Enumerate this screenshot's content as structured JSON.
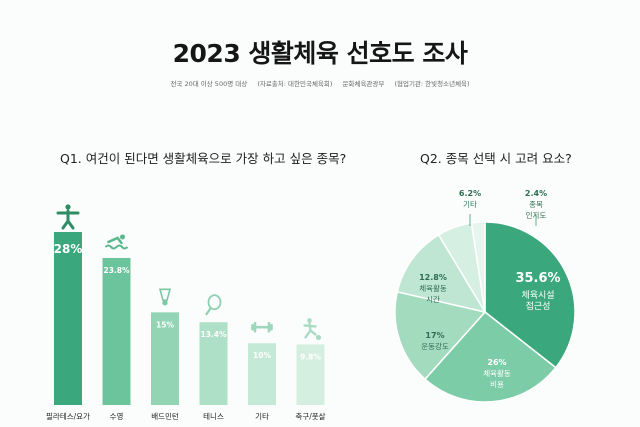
{
  "page": {
    "title": "2023 생활체육 선호도 조사",
    "subtitle_parts": [
      "전국 20대 이상 500명 대상",
      "(자료출처: 대한민국체육회)",
      "문화체육관광부",
      "(협업기관: 한빛청소년체육)"
    ]
  },
  "chart_data": [
    {
      "type": "bar",
      "title": "Q1. 여건이 된다면 생활체육으로 가장 하고 싶은 종목?",
      "categories": [
        "필라테스/요가",
        "수영",
        "배드민턴",
        "테니스",
        "기타",
        "축구/풋살"
      ],
      "values": [
        28,
        23.8,
        15,
        13.4,
        10,
        9.8
      ],
      "value_labels": [
        "28%",
        "23.8%",
        "15%",
        "13.4%",
        "10%",
        "9.8%"
      ],
      "icons": [
        "pilates-icon",
        "swimming-icon",
        "shuttlecock-icon",
        "tennis-icon",
        "dumbbell-icon",
        "soccer-icon"
      ],
      "colors": [
        "#3aa87c",
        "#6cc49c",
        "#93d4b5",
        "#aedfc7",
        "#c4e9d6",
        "#d4eee0"
      ],
      "ylim": [
        0,
        28
      ]
    },
    {
      "type": "pie",
      "title": "Q2. 종목 선택 시 고려 요소?",
      "slices": [
        {
          "label": "체육시설 접근성",
          "value": 35.6,
          "value_label": "35.6%",
          "color": "#3aa87c",
          "text_color": "#ffffff"
        },
        {
          "label": "체육활동 비용",
          "value": 26,
          "value_label": "26%",
          "color": "#7ccca7",
          "text_color": "#ffffff"
        },
        {
          "label": "운동강도",
          "value": 17,
          "value_label": "17%",
          "color": "#a3dbbf",
          "text_color": "#2f6d52"
        },
        {
          "label": "체육활동 시간",
          "value": 12.8,
          "value_label": "12.8%",
          "color": "#bfe6d2",
          "text_color": "#2f6d52"
        },
        {
          "label": "기타",
          "value": 6.2,
          "value_label": "6.2%",
          "color": "#d5efe2",
          "text_color": "#2f6d52"
        },
        {
          "label": "종목 인지도",
          "value": 2.4,
          "value_label": "2.4%",
          "color": "#e6f5ed",
          "text_color": "#2f6d52"
        }
      ]
    }
  ]
}
